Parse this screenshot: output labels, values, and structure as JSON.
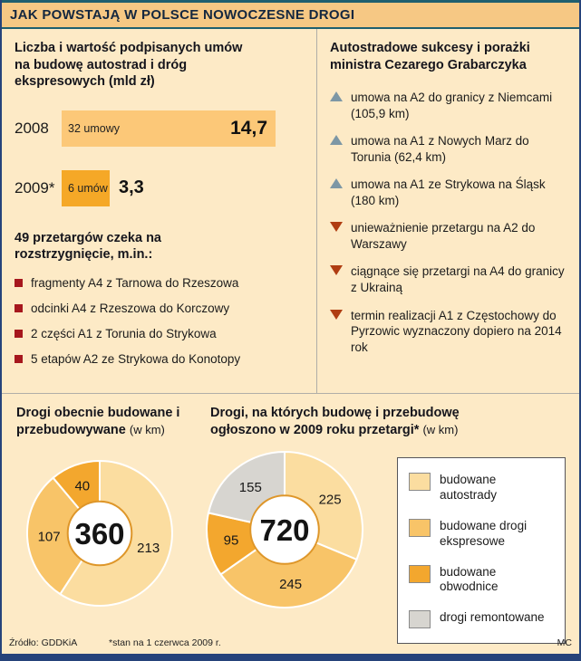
{
  "header": {
    "title": "JAK POWSTAJĄ W POLSCE NOWOCZESNE DROGI"
  },
  "left": {
    "chart_title": "Liczba i wartość podpisanych umów na budowę autostrad i dróg ekspresowych (mld zł)",
    "tenders_title": "49 przetargów czeka na rozstrzygnięcie, m.in.:",
    "tenders": [
      "fragmenty A4 z Tarnowa do Rzeszowa",
      "odcinki A4 z Rzeszowa do Korczowy",
      "2 części A1 z Torunia do Strykowa",
      "5 etapów A2 ze Strykowa do Konotopy"
    ]
  },
  "right": {
    "title": "Autostradowe sukcesy i porażki ministra Cezarego Grabarczyka",
    "items": [
      {
        "dir": "up",
        "text": "umowa na A2 do granicy z Niemcami (105,9 km)"
      },
      {
        "dir": "up",
        "text": "umowa na A1 z Nowych Marz do Torunia (62,4 km)"
      },
      {
        "dir": "up",
        "text": "umowa na A1 ze Strykowa na Śląsk (180 km)"
      },
      {
        "dir": "down",
        "text": "unieważnienie przetargu na A2 do Warszawy"
      },
      {
        "dir": "down",
        "text": "ciągnące się przetargi na A4 do granicy z Ukrainą"
      },
      {
        "dir": "down",
        "text": "termin realizacji A1 z Częstochowy do Pyrzowic wyznaczony dopiero na 2014 rok"
      }
    ]
  },
  "bottom": {
    "donut1_title": "Drogi obecnie budowane i przebudowywane",
    "donut2_title": "Drogi, na których budowę i przebudowę ogłoszono w 2009 roku przetargi*",
    "unit": "(w km)",
    "legend": {
      "items": [
        {
          "label": "budowane autostrady",
          "color": "#fbdda0"
        },
        {
          "label": "budowane drogi ekspresowe",
          "color": "#f8c468"
        },
        {
          "label": "budowane obwodnice",
          "color": "#f3a72e"
        },
        {
          "label": "drogi remontowane",
          "color": "#d7d5d0"
        }
      ]
    }
  },
  "footer": {
    "source": "Źródło: GDDKiA",
    "note": "*stan na 1 czerwca 2009 r.",
    "credit": "MC"
  },
  "chart_data": [
    {
      "type": "bar",
      "orientation": "horizontal",
      "title": "Liczba i wartość podpisanych umów na budowę autostrad i dróg ekspresowych (mld zł)",
      "categories": [
        "2008",
        "2009*"
      ],
      "values": [
        14.7,
        3.3
      ],
      "value_labels": [
        "14,7",
        "3,3"
      ],
      "bar_annotations": [
        "32 umowy",
        "6 umów"
      ],
      "bar_colors": [
        "#fcc878",
        "#f5a827"
      ],
      "unit": "mld zł"
    },
    {
      "type": "pie",
      "donut": true,
      "title": "Drogi obecnie budowane i przebudowywane (w km)",
      "center_total": "360",
      "segments": [
        {
          "label": "213",
          "value": 213,
          "category": "budowane autostrady",
          "color": "#fbdda0"
        },
        {
          "label": "107",
          "value": 107,
          "category": "budowane drogi ekspresowe",
          "color": "#f8c468"
        },
        {
          "label": "40",
          "value": 40,
          "category": "budowane obwodnice",
          "color": "#f3a72e"
        }
      ]
    },
    {
      "type": "pie",
      "donut": true,
      "title": "Drogi, na których budowę i przebudowę ogłoszono w 2009 roku przetargi* (w km)",
      "center_total": "720",
      "segments": [
        {
          "label": "225",
          "value": 225,
          "category": "budowane autostrady",
          "color": "#fbdda0"
        },
        {
          "label": "245",
          "value": 245,
          "category": "budowane drogi ekspresowe",
          "color": "#f8c468"
        },
        {
          "label": "95",
          "value": 95,
          "category": "budowane obwodnice",
          "color": "#f3a72e"
        },
        {
          "label": "155",
          "value": 155,
          "category": "drogi remontowane",
          "color": "#d7d5d0"
        }
      ]
    }
  ]
}
